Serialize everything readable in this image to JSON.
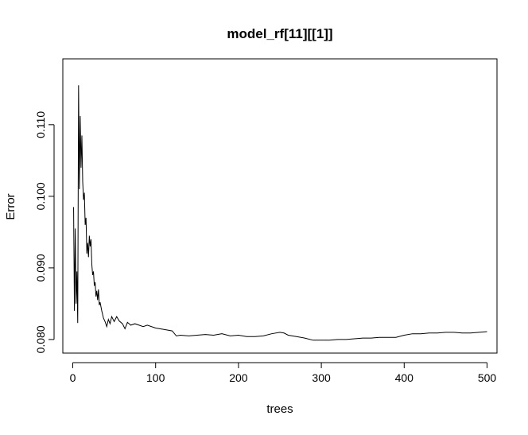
{
  "chart_data": {
    "type": "line",
    "title": "model_rf[11][[1]]",
    "xlabel": "trees",
    "ylabel": "Error",
    "xlim": [
      -12,
      512
    ],
    "ylim": [
      0.0781,
      0.1192
    ],
    "grid": false,
    "legend": "none",
    "line_color": "#000000",
    "x_ticks": [
      0,
      100,
      200,
      300,
      400,
      500
    ],
    "x_tick_labels": [
      "0",
      "100",
      "200",
      "300",
      "400",
      "500"
    ],
    "y_ticks": [
      0.08,
      0.09,
      0.1,
      0.11
    ],
    "y_tick_labels": [
      "0.080",
      "0.090",
      "0.100",
      "0.110"
    ],
    "series": [
      {
        "x": [
          1,
          2,
          3,
          4,
          5,
          6,
          7,
          8,
          9,
          10,
          11,
          12,
          13,
          14,
          15,
          16,
          17,
          18,
          19,
          20,
          21,
          22,
          23,
          24,
          25,
          26,
          27,
          28,
          29,
          30,
          31,
          32,
          33,
          35,
          37,
          39,
          41,
          43,
          45,
          47,
          50,
          53,
          56,
          60,
          63,
          66,
          70,
          75,
          80,
          85,
          90,
          100,
          110,
          120,
          125,
          130,
          140,
          150,
          160,
          170,
          180,
          190,
          200,
          210,
          220,
          230,
          240,
          250,
          255,
          260,
          270,
          280,
          290,
          300,
          310,
          320,
          330,
          340,
          350,
          360,
          370,
          380,
          390,
          400,
          410,
          420,
          430,
          440,
          450,
          460,
          470,
          480,
          490,
          500
        ],
        "y": [
          0.0985,
          0.084,
          0.0955,
          0.085,
          0.0895,
          0.0823,
          0.1155,
          0.101,
          0.1112,
          0.104,
          0.1085,
          0.102,
          0.0995,
          0.1005,
          0.096,
          0.097,
          0.092,
          0.0935,
          0.0915,
          0.0945,
          0.093,
          0.094,
          0.0905,
          0.089,
          0.0895,
          0.0875,
          0.088,
          0.086,
          0.0868,
          0.0855,
          0.087,
          0.0848,
          0.0852,
          0.084,
          0.083,
          0.0825,
          0.0818,
          0.0828,
          0.0822,
          0.0832,
          0.0825,
          0.0832,
          0.0826,
          0.0822,
          0.0815,
          0.0824,
          0.082,
          0.0822,
          0.082,
          0.0818,
          0.082,
          0.0816,
          0.0814,
          0.0812,
          0.0805,
          0.0806,
          0.0805,
          0.0806,
          0.0807,
          0.0806,
          0.0808,
          0.0805,
          0.0806,
          0.0804,
          0.0804,
          0.0805,
          0.0808,
          0.081,
          0.0809,
          0.0806,
          0.0804,
          0.0802,
          0.0799,
          0.0799,
          0.0799,
          0.08,
          0.08,
          0.0801,
          0.0802,
          0.0802,
          0.0803,
          0.0803,
          0.0803,
          0.0806,
          0.0808,
          0.0808,
          0.0809,
          0.0809,
          0.081,
          0.081,
          0.0809,
          0.0809,
          0.081,
          0.0811
        ]
      }
    ]
  }
}
